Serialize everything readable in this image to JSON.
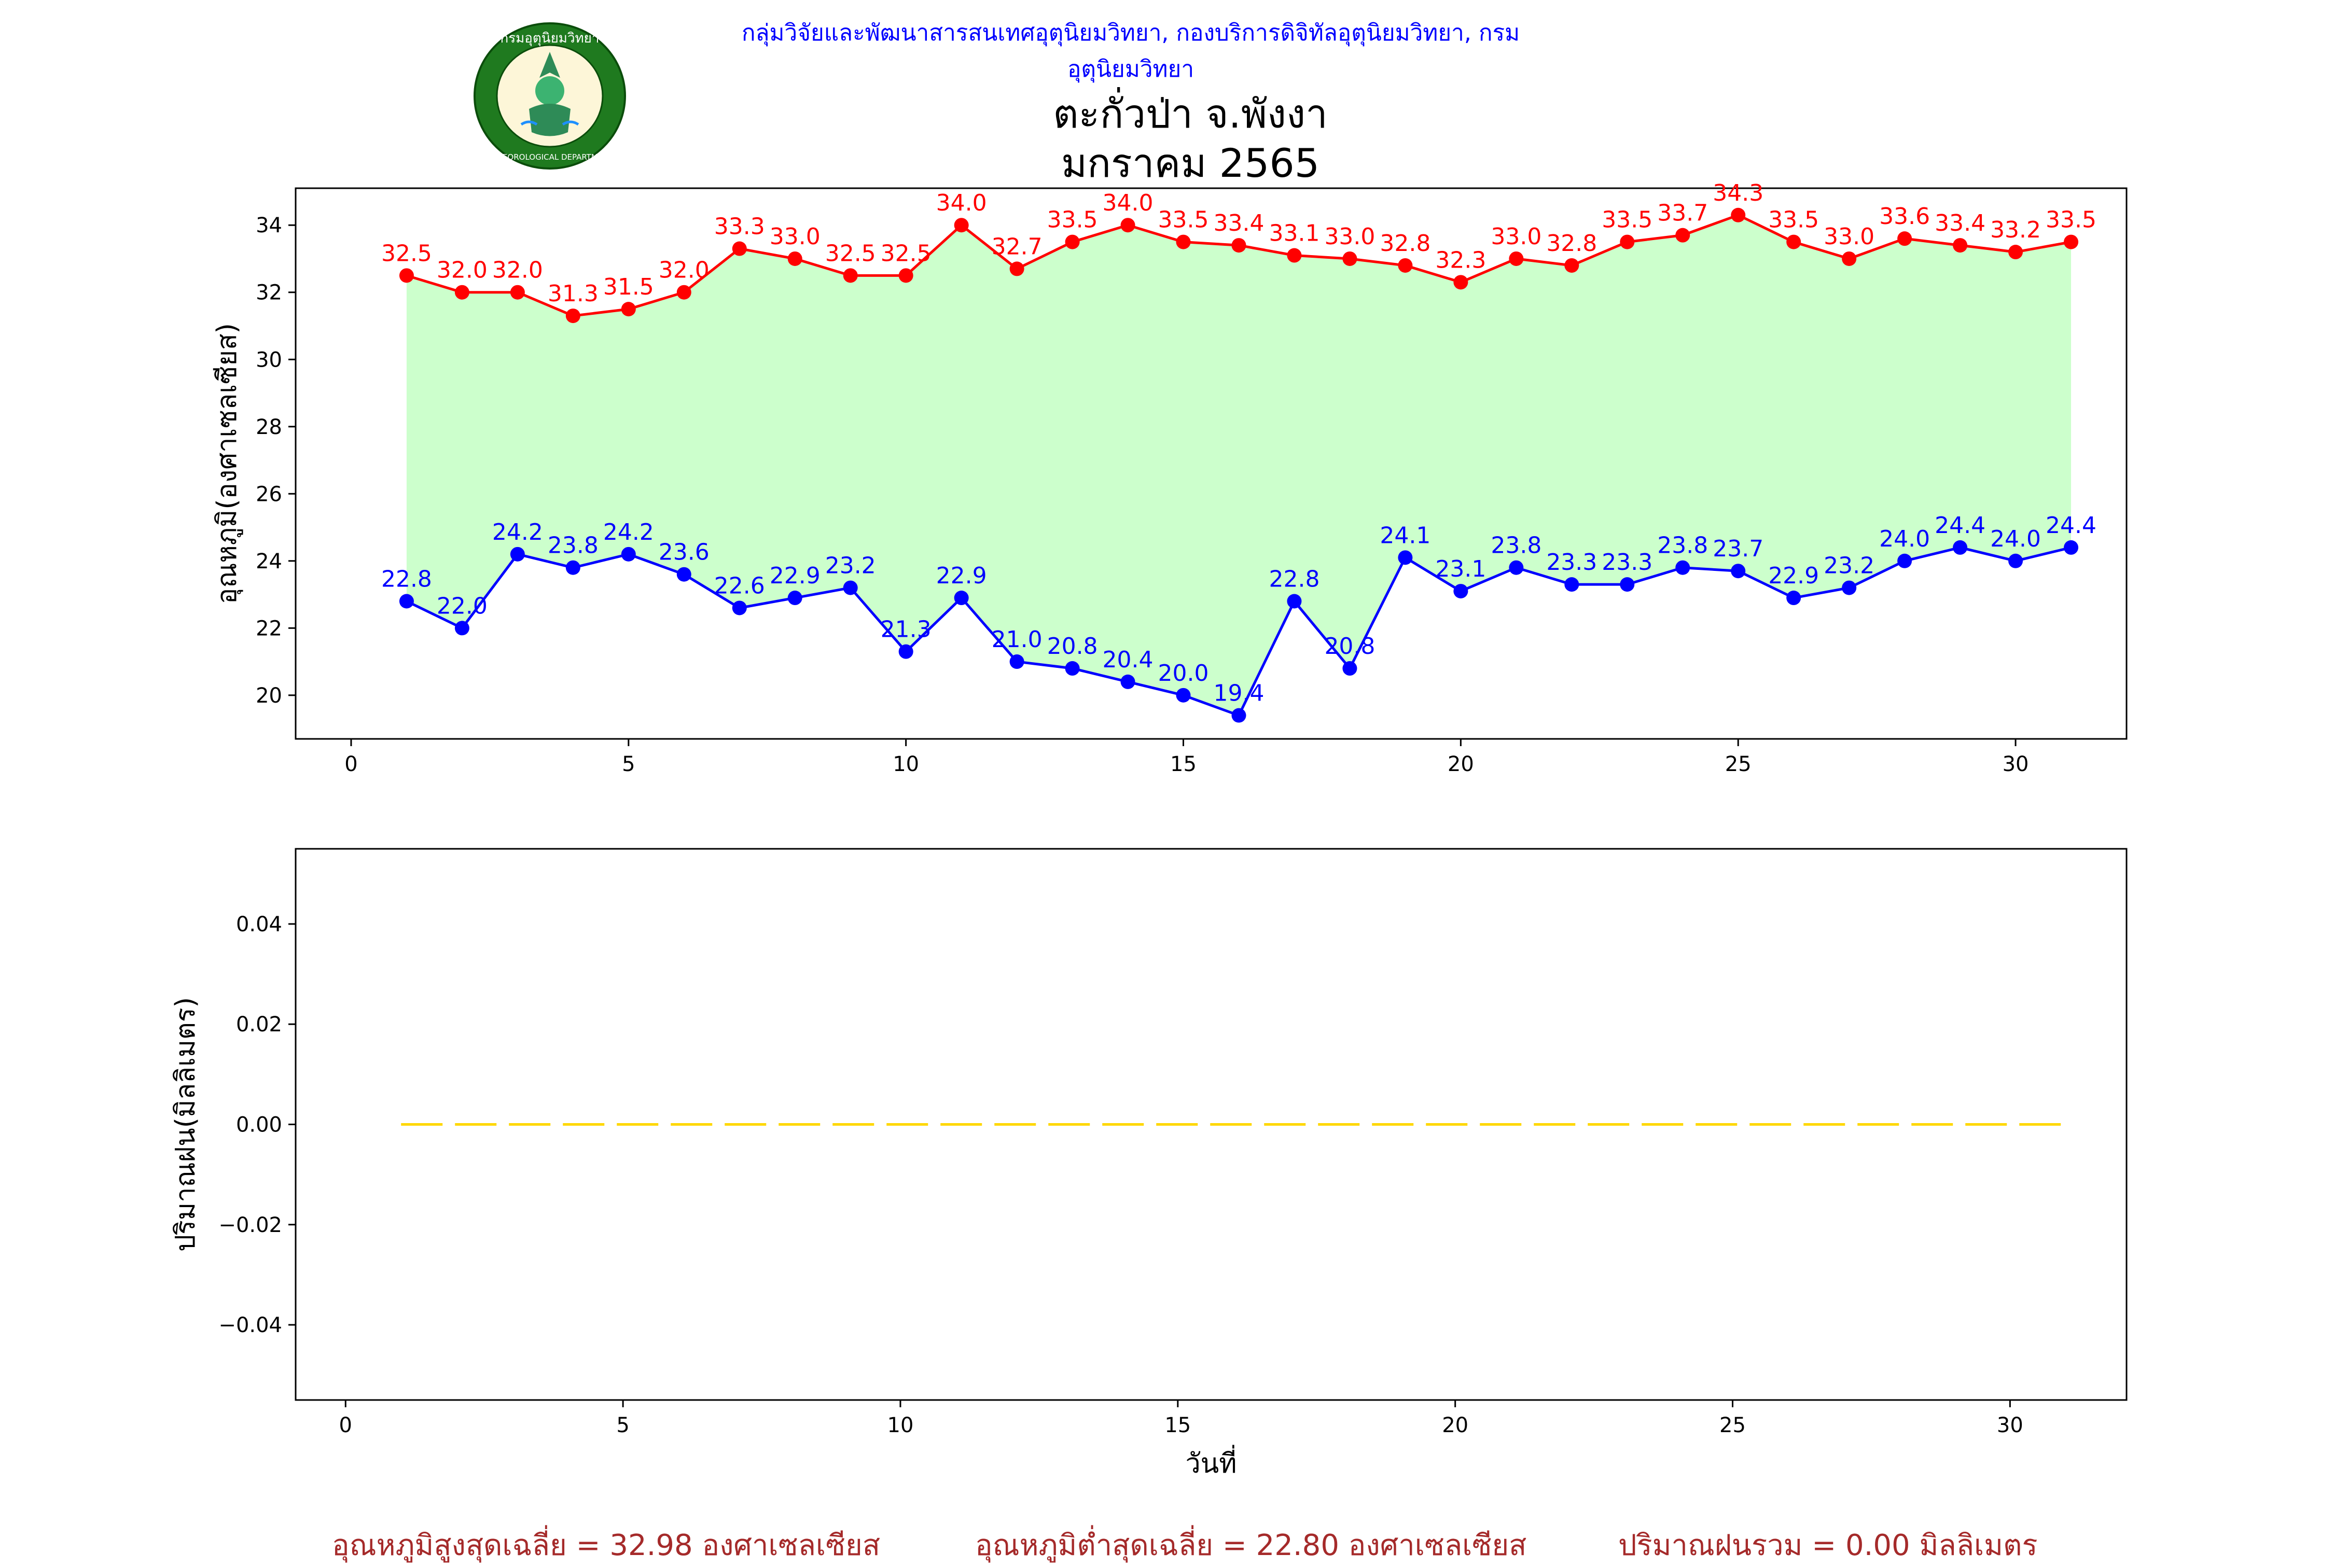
{
  "header": {
    "department": "กลุ่มวิจัยและพัฒนาสารสนเทศอุตุนิยมวิทยา, กองบริการดิจิทัลอุตุนิยมวิทยา, กรมอุตุนิยมวิทยา",
    "logo_text_top": "กรมอุตุนิยมวิทยา",
    "logo_text_bottom": "METEOROLOGICAL DEPARTMENT"
  },
  "title": {
    "station": "ตะกั่วป่า จ.พังงา",
    "period": "มกราคม 2565"
  },
  "colors": {
    "max_series": "#ff0000",
    "min_series": "#0000ff",
    "fill": "#ccffcc",
    "rain": "#ffd700",
    "footer": "#a52a2a",
    "header": "#0000ff"
  },
  "chart_data": [
    {
      "type": "line",
      "ylabel": "อุณหภูมิ(องศาเซลเซียส)",
      "xlabel": "",
      "xlim": [
        -1,
        32
      ],
      "ylim": [
        18.7,
        35.1
      ],
      "xticks": [
        0,
        5,
        10,
        15,
        20,
        25,
        30
      ],
      "yticks": [
        20,
        22,
        24,
        26,
        28,
        30,
        32,
        34
      ],
      "x": [
        1,
        2,
        3,
        4,
        5,
        6,
        7,
        8,
        9,
        10,
        11,
        12,
        13,
        14,
        15,
        16,
        17,
        18,
        19,
        20,
        21,
        22,
        23,
        24,
        25,
        26,
        27,
        28,
        29,
        30,
        31
      ],
      "series": [
        {
          "values": [
            32.5,
            32.0,
            32.0,
            31.3,
            31.5,
            32.0,
            33.3,
            33.0,
            32.5,
            32.5,
            34.0,
            32.7,
            33.5,
            34.0,
            33.5,
            33.4,
            33.1,
            33.0,
            32.8,
            32.3,
            33.0,
            32.8,
            33.5,
            33.7,
            34.3,
            33.5,
            33.0,
            33.6,
            33.4,
            33.2,
            33.5
          ],
          "labels": [
            "32.5",
            "32.0",
            "32.0",
            "31.3",
            "31.5",
            "32.0",
            "33.3",
            "33.0",
            "32.5",
            "32.5",
            "34.0",
            "32.7",
            "33.5",
            "34.0",
            "33.5",
            "33.4",
            "33.1",
            "33.0",
            "32.8",
            "32.3",
            "33.0",
            "32.8",
            "33.5",
            "33.7",
            "34.3",
            "33.5",
            "33.0",
            "33.6",
            "33.4",
            "33.2",
            "33.5"
          ]
        },
        {
          "values": [
            22.8,
            22.0,
            24.2,
            23.8,
            24.2,
            23.6,
            22.6,
            22.9,
            23.2,
            21.3,
            22.9,
            21.0,
            20.8,
            20.4,
            20.0,
            19.4,
            22.8,
            20.8,
            24.1,
            23.1,
            23.8,
            23.3,
            23.3,
            23.8,
            23.7,
            22.9,
            23.2,
            24.0,
            24.4,
            24.0,
            24.4
          ],
          "labels": [
            "22.8",
            "22.0",
            "24.2",
            "23.8",
            "24.2",
            "23.6",
            "22.6",
            "22.9",
            "23.2",
            "21.3",
            "22.9",
            "21.0",
            "20.8",
            "20.4",
            "20.0",
            "19.4",
            "22.8",
            "20.8",
            "24.1",
            "23.1",
            "23.8",
            "23.3",
            "23.3",
            "23.8",
            "23.7",
            "22.9",
            "23.2",
            "24.0",
            "24.4",
            "24.0",
            "24.4"
          ]
        }
      ],
      "fill_between": true
    },
    {
      "type": "line",
      "ylabel": "ปริมาณฝน(มิลลิเมตร)",
      "xlabel": "วันที่",
      "xlim": [
        -0.9,
        32.1
      ],
      "ylim": [
        -0.055,
        0.055
      ],
      "xticks": [
        0,
        5,
        10,
        15,
        20,
        25,
        30
      ],
      "yticks": [
        -0.04,
        -0.02,
        0.0,
        0.02,
        0.04
      ],
      "ytick_labels": [
        "−0.04",
        "−0.02",
        "0.00",
        "0.02",
        "0.04"
      ],
      "x": [
        1,
        2,
        3,
        4,
        5,
        6,
        7,
        8,
        9,
        10,
        11,
        12,
        13,
        14,
        15,
        16,
        17,
        18,
        19,
        20,
        21,
        22,
        23,
        24,
        25,
        26,
        27,
        28,
        29,
        30,
        31
      ],
      "series": [
        {
          "values": [
            0,
            0,
            0,
            0,
            0,
            0,
            0,
            0,
            0,
            0,
            0,
            0,
            0,
            0,
            0,
            0,
            0,
            0,
            0,
            0,
            0,
            0,
            0,
            0,
            0,
            0,
            0,
            0,
            0,
            0,
            0
          ],
          "style": "dashed"
        }
      ]
    }
  ],
  "footer": {
    "avg_max": "อุณหภูมิสูงสุดเฉลี่ย = 32.98 องศาเซลเซียส",
    "avg_min": "อุณหภูมิต่ำสุดเฉลี่ย = 22.80 องศาเซลเซียส",
    "total_rain": "ปริมาณฝนรวม = 0.00 มิลลิเมตร"
  }
}
